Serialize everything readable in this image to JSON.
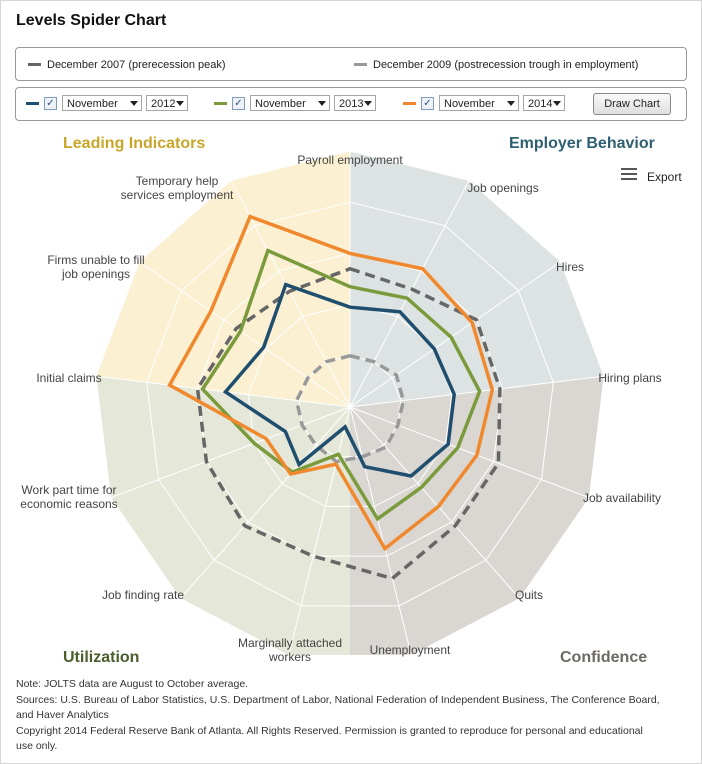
{
  "title": "Levels Spider Chart",
  "legend": [
    {
      "label": "December 2007 (prerecession peak)",
      "color": "#666666"
    },
    {
      "label": "December 2009 (postrecession trough in employment)",
      "color": "#999999"
    }
  ],
  "controls": [
    {
      "color": "#1f4e6f",
      "checked": "✓",
      "month": "November",
      "year": "2012"
    },
    {
      "color": "#7a9a3c",
      "checked": "✓",
      "month": "November",
      "year": "2013"
    },
    {
      "color": "#f0882d",
      "checked": "✓",
      "month": "November",
      "year": "2014"
    }
  ],
  "draw_button": "Draw Chart",
  "export_label": "Export",
  "groups": {
    "leading": {
      "label": "Leading Indicators",
      "color": "#c9a62a"
    },
    "employer": {
      "label": "Employer Behavior",
      "color": "#2f5f72"
    },
    "utilization": {
      "label": "Utilization",
      "color": "#4a5e2a"
    },
    "confidence": {
      "label": "Confidence",
      "color": "#6e6a63"
    }
  },
  "notes": [
    "Note: JOLTS data are August to October average.",
    "Sources: U.S. Bureau of Labor Statistics, U.S. Department of Labor, National Federation of Independent Business, The Conference Board,",
    "and Haver Analytics",
    "Copyright 2014 Federal Reserve Bank of Atlanta. All Rights Reserved. Permission is granted to reproduce for personal and educational",
    "use only."
  ],
  "chart_data": {
    "type": "radar",
    "scale": [
      0,
      1
    ],
    "grid": true,
    "axes": [
      "Payroll employment",
      "Job openings",
      "Hires",
      "Hiring plans",
      "Job availability",
      "Quits",
      "Unemployment",
      "Marginally attached workers",
      "Job finding rate",
      "Work part time for economic reasons",
      "Initial claims",
      "Firms unable to fill job openings",
      "Temporary help services employment"
    ],
    "sectors": [
      {
        "group": "employer",
        "axes": [
          0,
          3
        ],
        "color": "#dde3e3"
      },
      {
        "group": "confidence",
        "axes": [
          3,
          6.5
        ],
        "color": "#dad7d2"
      },
      {
        "group": "utilization",
        "axes": [
          6.5,
          10
        ],
        "color": "#e5e8d8"
      },
      {
        "group": "leading",
        "axes": [
          10,
          13
        ],
        "color": "#fbf0d2"
      }
    ],
    "series": [
      {
        "name": "December 2007 (prerecession peak)",
        "color": "#666666",
        "dash": true,
        "values": [
          0.54,
          0.52,
          0.6,
          0.59,
          0.62,
          0.62,
          0.69,
          0.6,
          0.62,
          0.6,
          0.6,
          0.54,
          0.51
        ]
      },
      {
        "name": "December 2009 (postrecession trough in employment)",
        "color": "#999999",
        "dash": true,
        "values": [
          0.2,
          0.2,
          0.22,
          0.21,
          0.2,
          0.21,
          0.2,
          0.22,
          0.2,
          0.2,
          0.21,
          0.2,
          0.2
        ]
      },
      {
        "name": "November 2012",
        "color": "#1f4e6f",
        "dash": false,
        "values": [
          0.39,
          0.42,
          0.4,
          0.41,
          0.41,
          0.36,
          0.24,
          0.08,
          0.3,
          0.27,
          0.49,
          0.41,
          0.54
        ]
      },
      {
        "name": "November 2013",
        "color": "#7a9a3c",
        "dash": false,
        "values": [
          0.47,
          0.48,
          0.48,
          0.51,
          0.45,
          0.42,
          0.45,
          0.19,
          0.34,
          0.4,
          0.58,
          0.52,
          0.69
        ]
      },
      {
        "name": "November 2014",
        "color": "#f0882d",
        "dash": false,
        "values": [
          0.6,
          0.61,
          0.58,
          0.56,
          0.53,
          0.52,
          0.57,
          0.23,
          0.35,
          0.35,
          0.71,
          0.66,
          0.84
        ]
      }
    ]
  }
}
